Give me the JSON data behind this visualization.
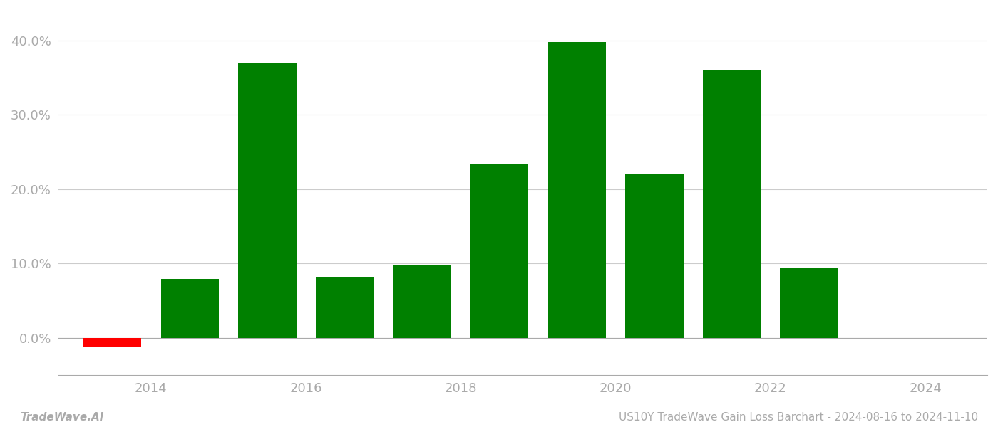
{
  "years": [
    2013.5,
    2014.5,
    2015.5,
    2016.5,
    2017.5,
    2018.5,
    2019.5,
    2020.5,
    2021.5,
    2022.5
  ],
  "values": [
    -0.012,
    0.079,
    0.37,
    0.082,
    0.099,
    0.233,
    0.398,
    0.22,
    0.36,
    0.095
  ],
  "colors": [
    "#ff0000",
    "#008000",
    "#008000",
    "#008000",
    "#008000",
    "#008000",
    "#008000",
    "#008000",
    "#008000",
    "#008000"
  ],
  "bar_width": 0.75,
  "ylim": [
    -0.05,
    0.44
  ],
  "yticks": [
    0.0,
    0.1,
    0.2,
    0.3,
    0.4
  ],
  "xlim": [
    2012.8,
    2024.8
  ],
  "xticks": [
    2014,
    2016,
    2018,
    2020,
    2022,
    2024
  ],
  "title": "US10Y TradeWave Gain Loss Barchart - 2024-08-16 to 2024-11-10",
  "watermark": "TradeWave.AI",
  "background_color": "#ffffff",
  "grid_color": "#cccccc",
  "axis_label_color": "#aaaaaa",
  "tick_label_color": "#aaaaaa"
}
